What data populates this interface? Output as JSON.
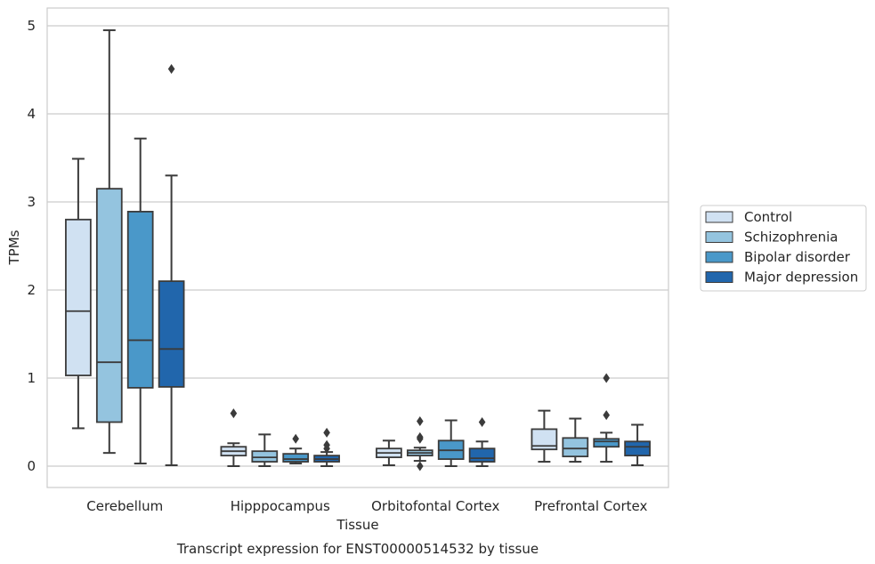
{
  "chart_data": {
    "type": "box",
    "title": "",
    "caption": "Transcript expression for ENST00000514532 by tissue",
    "xlabel": "Tissue",
    "ylabel": "TPMs",
    "ylim": [
      -0.24,
      5.2
    ],
    "yticks": [
      0,
      1,
      2,
      3,
      4,
      5
    ],
    "categories": [
      "Cerebellum",
      "Hipppocampus",
      "Orbitofontal Cortex",
      "Prefrontal Cortex"
    ],
    "grid": true,
    "legend_position": "right",
    "series": [
      {
        "name": "Control",
        "color": "#d0e1f2",
        "boxes": [
          {
            "whislo": 0.43,
            "q1": 1.03,
            "med": 1.76,
            "q3": 2.8,
            "whishi": 3.49,
            "fliers": []
          },
          {
            "whislo": 0.0,
            "q1": 0.12,
            "med": 0.17,
            "q3": 0.22,
            "whishi": 0.26,
            "fliers": [
              0.6
            ]
          },
          {
            "whislo": 0.01,
            "q1": 0.1,
            "med": 0.15,
            "q3": 0.2,
            "whishi": 0.29,
            "fliers": []
          },
          {
            "whislo": 0.05,
            "q1": 0.19,
            "med": 0.23,
            "q3": 0.42,
            "whishi": 0.63,
            "fliers": []
          }
        ]
      },
      {
        "name": "Schizophrenia",
        "color": "#94c4df",
        "boxes": [
          {
            "whislo": 0.15,
            "q1": 0.5,
            "med": 1.18,
            "q3": 3.15,
            "whishi": 4.95,
            "fliers": []
          },
          {
            "whislo": 0.0,
            "q1": 0.05,
            "med": 0.1,
            "q3": 0.17,
            "whishi": 0.36,
            "fliers": []
          },
          {
            "whislo": 0.06,
            "q1": 0.12,
            "med": 0.15,
            "q3": 0.18,
            "whishi": 0.21,
            "fliers": [
              0.51,
              0.33,
              0.31,
              0.0
            ]
          },
          {
            "whislo": 0.05,
            "q1": 0.11,
            "med": 0.2,
            "q3": 0.32,
            "whishi": 0.54,
            "fliers": []
          }
        ]
      },
      {
        "name": "Bipolar disorder",
        "color": "#4a98c9",
        "boxes": [
          {
            "whislo": 0.03,
            "q1": 0.89,
            "med": 1.43,
            "q3": 2.89,
            "whishi": 3.72,
            "fliers": []
          },
          {
            "whislo": 0.03,
            "q1": 0.05,
            "med": 0.08,
            "q3": 0.14,
            "whishi": 0.2,
            "fliers": [
              0.31
            ]
          },
          {
            "whislo": 0.0,
            "q1": 0.08,
            "med": 0.18,
            "q3": 0.29,
            "whishi": 0.52,
            "fliers": []
          },
          {
            "whislo": 0.05,
            "q1": 0.22,
            "med": 0.28,
            "q3": 0.31,
            "whishi": 0.38,
            "fliers": [
              1.0,
              0.58
            ]
          }
        ]
      },
      {
        "name": "Major depression",
        "color": "#2166ac",
        "boxes": [
          {
            "whislo": 0.01,
            "q1": 0.9,
            "med": 1.33,
            "q3": 2.1,
            "whishi": 3.3,
            "fliers": [
              4.51
            ]
          },
          {
            "whislo": 0.0,
            "q1": 0.05,
            "med": 0.08,
            "q3": 0.12,
            "whishi": 0.16,
            "fliers": [
              0.38,
              0.24,
              0.2
            ]
          },
          {
            "whislo": 0.0,
            "q1": 0.05,
            "med": 0.09,
            "q3": 0.2,
            "whishi": 0.28,
            "fliers": [
              0.5
            ]
          },
          {
            "whislo": 0.01,
            "q1": 0.12,
            "med": 0.22,
            "q3": 0.28,
            "whishi": 0.47,
            "fliers": []
          }
        ]
      }
    ]
  }
}
